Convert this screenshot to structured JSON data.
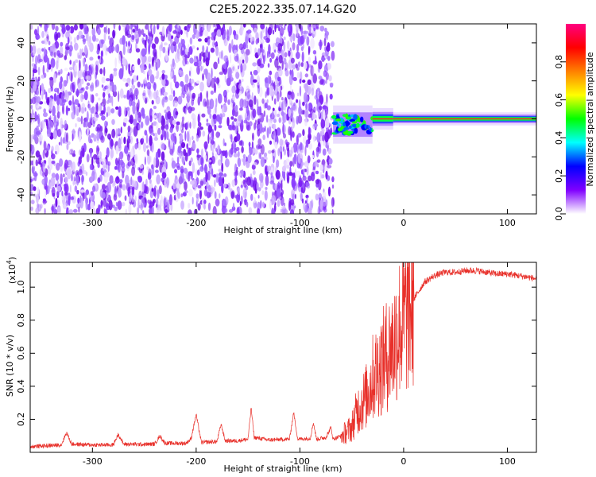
{
  "title": "C2E5.2022.335.07.14.G20",
  "chart_data": [
    {
      "type": "heatmap",
      "xlabel": "Height of straight line (km)",
      "ylabel": "Frequency (Hz)",
      "xlim": [
        -360,
        128
      ],
      "ylim": [
        -50,
        50
      ],
      "x_ticks": [
        -300,
        -200,
        -100,
        0,
        100
      ],
      "y_ticks": [
        -40,
        -20,
        0,
        20,
        40
      ],
      "x_tick_labels": [
        "-300",
        "-200",
        "-100",
        "0",
        "100"
      ],
      "y_tick_labels": [
        "-40",
        "-20",
        "0",
        "20",
        "40"
      ],
      "noise_region_x": [
        -360,
        -68
      ],
      "signal_segments": [
        {
          "x": [
            -68,
            -30
          ],
          "y_center": -3,
          "y_spread": 4
        },
        {
          "x": [
            -30,
            -10
          ],
          "y_center": 0,
          "y_spread": 2
        },
        {
          "x": [
            -10,
            128
          ],
          "y_center": 0,
          "y_spread": 1
        }
      ],
      "colorbar": {
        "label": "Normalized spectral amplitude",
        "range": [
          0,
          1
        ],
        "ticks": [
          0.0,
          0.2,
          0.4,
          0.6,
          0.8
        ],
        "tick_labels": [
          "0.0",
          "0.2",
          "0.4",
          "0.6",
          "0.8"
        ],
        "colors": [
          "#ffffff",
          "#8000ff",
          "#0000ff",
          "#00ffff",
          "#00ff00",
          "#ffff00",
          "#ff8000",
          "#ff0000",
          "#ff0080"
        ]
      }
    },
    {
      "type": "line",
      "xlabel": "Height of straight line (km)",
      "ylabel": "SNR (10 * v/v)",
      "scale_label": "(x10",
      "scale_exponent": "4",
      "scale_suffix": ")",
      "xlim": [
        -360,
        128
      ],
      "ylim": [
        0,
        11500
      ],
      "x_ticks": [
        -300,
        -200,
        -100,
        0,
        100
      ],
      "y_ticks": [
        2000,
        4000,
        6000,
        8000,
        10000
      ],
      "x_tick_labels": [
        "-300",
        "-200",
        "-100",
        "0",
        "100"
      ],
      "y_tick_labels": [
        "0.2",
        "0.4",
        "0.6",
        "0.8",
        "1.0"
      ],
      "line_color": "#e8302a",
      "series": [
        {
          "x": [
            -360,
            -330,
            -325,
            -320,
            -300,
            -280,
            -275,
            -270,
            -250,
            -240,
            -235,
            -230,
            -210,
            -205,
            -200,
            -195,
            -180,
            -176,
            -172,
            -160,
            -150,
            -147,
            -144,
            -130,
            -110,
            -106,
            -102,
            -90,
            -87,
            -84,
            -75,
            -70,
            -68,
            -60,
            -50,
            -45,
            -40,
            -35,
            -30,
            -25,
            -20,
            -15,
            -10,
            -5,
            0,
            5,
            10,
            15,
            20,
            25,
            30,
            40,
            50,
            60,
            70,
            80,
            90,
            100,
            110,
            120,
            128
          ],
          "y": [
            350,
            450,
            1200,
            500,
            450,
            450,
            1100,
            500,
            480,
            500,
            1000,
            550,
            550,
            800,
            2300,
            600,
            650,
            1700,
            700,
            700,
            800,
            2700,
            900,
            750,
            800,
            2400,
            800,
            850,
            1800,
            800,
            900,
            1500,
            800,
            1000,
            1500,
            2500,
            3000,
            3500,
            4500,
            5000,
            5500,
            6000,
            6500,
            7500,
            8000,
            8500,
            9300,
            9800,
            10300,
            10500,
            10700,
            10900,
            10900,
            11000,
            11000,
            10900,
            10800,
            10800,
            10700,
            10600,
            10500
          ]
        }
      ]
    }
  ]
}
